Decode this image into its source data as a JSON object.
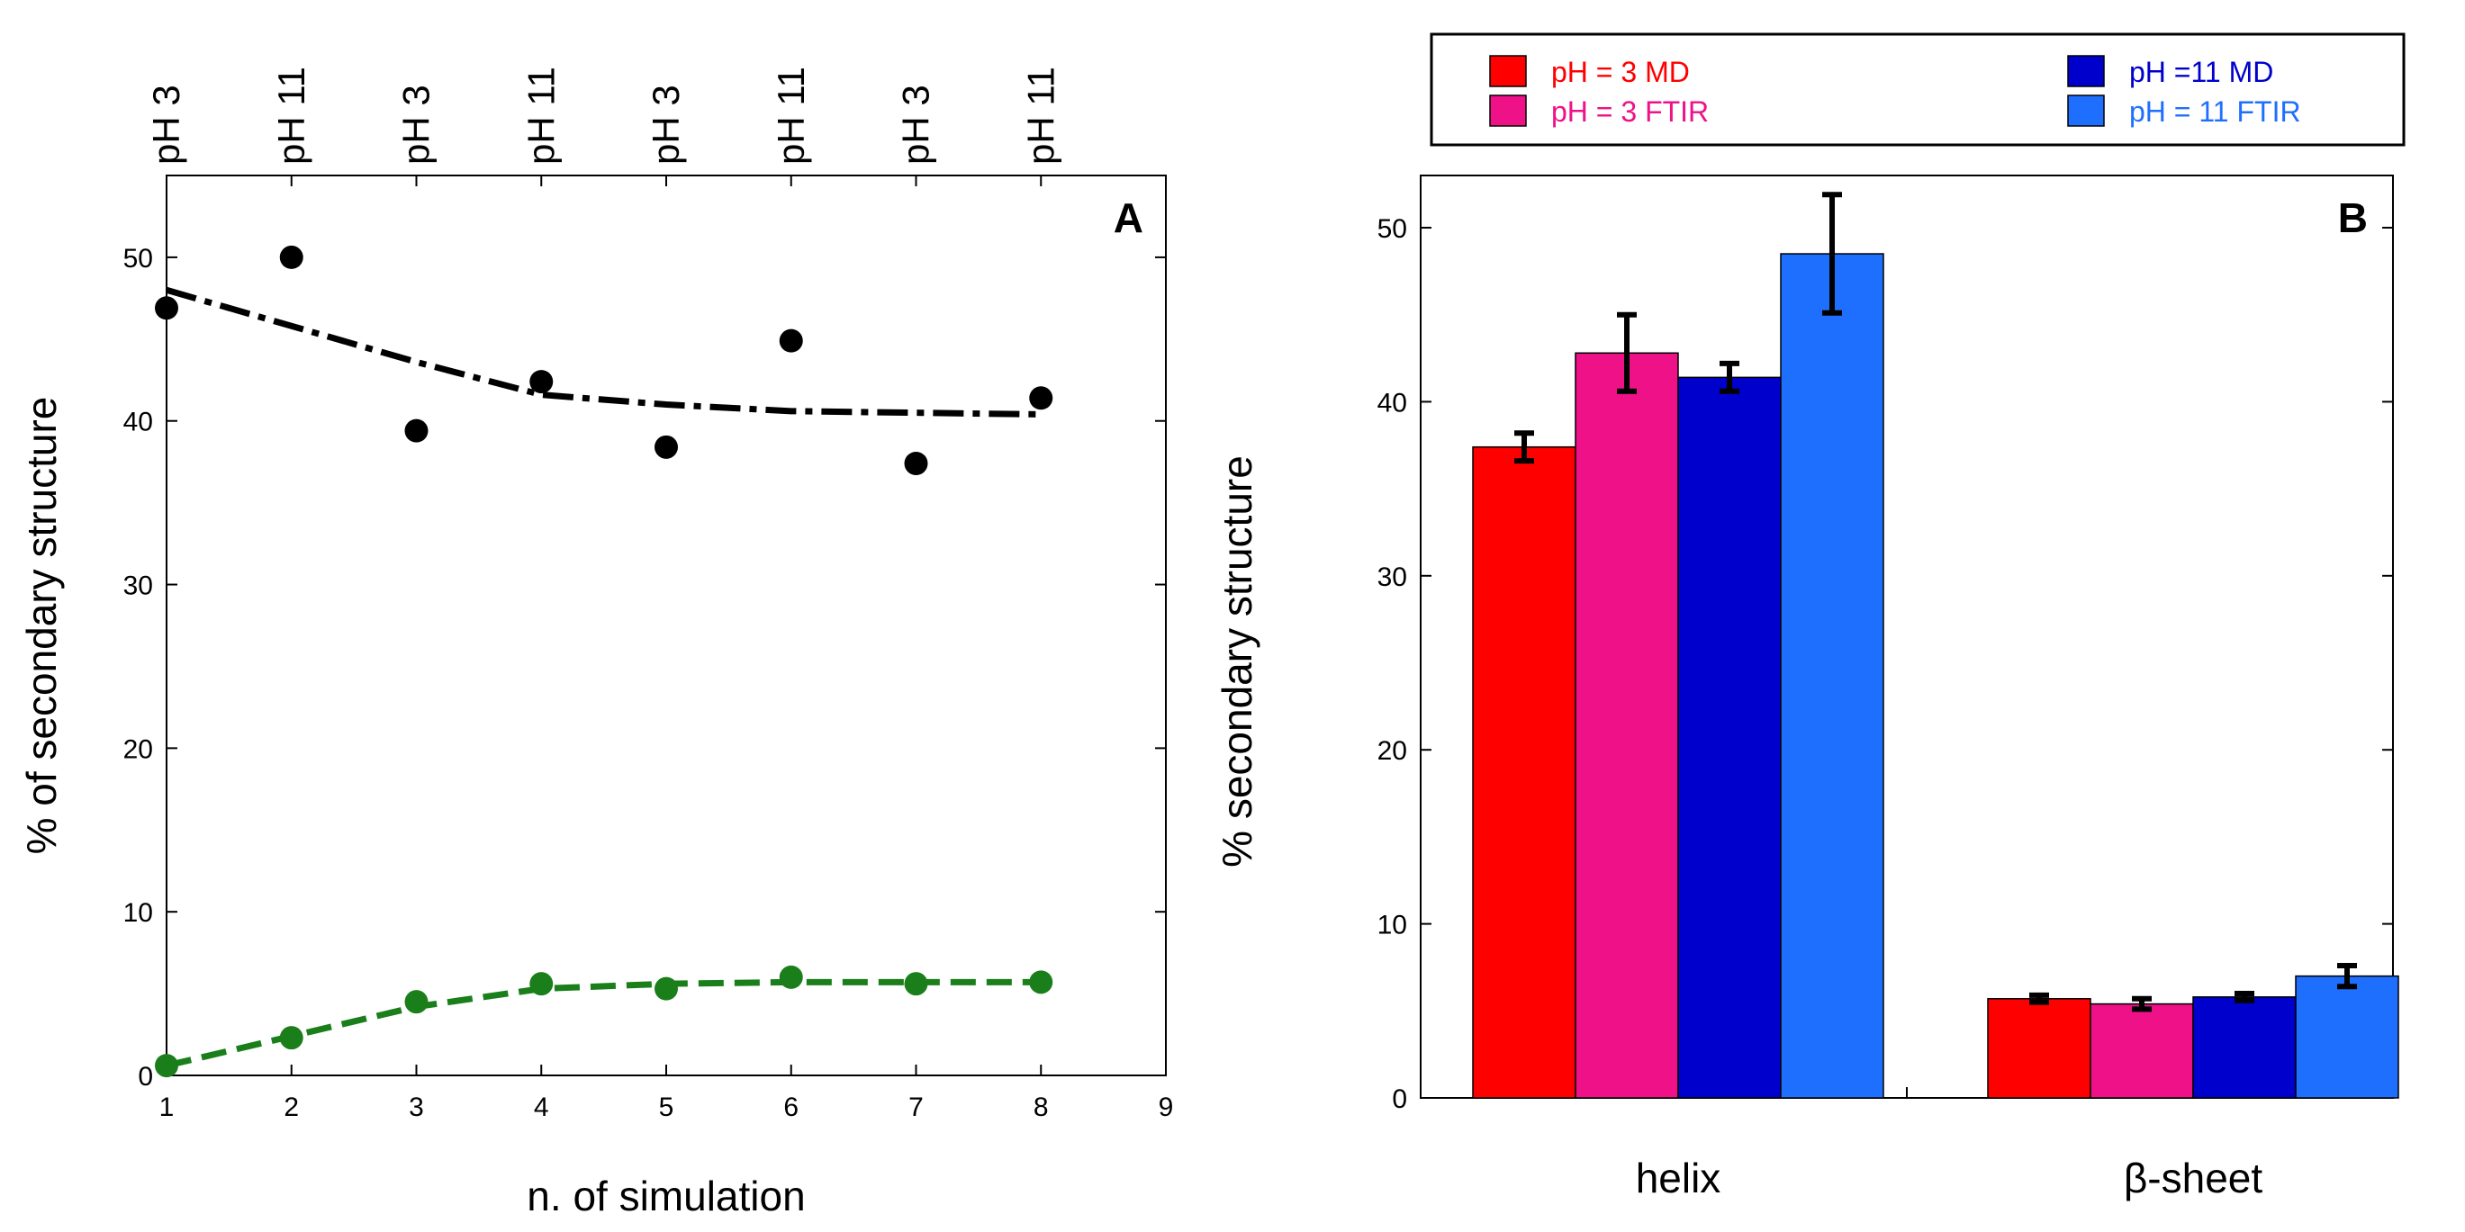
{
  "chart_data": [
    {
      "type": "scatter",
      "panel_label": "A",
      "xlabel": "n. of simulation",
      "ylabel": "% of secondary structure",
      "xlim": [
        1,
        9
      ],
      "ylim": [
        0,
        55
      ],
      "xticks": [
        1,
        2,
        3,
        4,
        5,
        6,
        7,
        8,
        9
      ],
      "yticks": [
        0,
        10,
        20,
        30,
        40,
        50
      ],
      "top_labels": [
        "pH 3",
        "pH 11",
        "pH 3",
        "pH 11",
        "pH 3",
        "pH 11",
        "pH 3",
        "pH 11"
      ],
      "grid": false,
      "series": [
        {
          "color": "#000000",
          "line_style": "dash-dot",
          "x": [
            1,
            2,
            3,
            4,
            5,
            6,
            7,
            8
          ],
          "points": [
            46.9,
            50.0,
            39.4,
            42.4,
            38.4,
            44.9,
            37.4,
            41.4
          ],
          "trend": [
            48.0,
            45.8,
            43.6,
            41.6,
            41.0,
            40.6,
            40.5,
            40.4
          ]
        },
        {
          "color": "#1a7f1a",
          "line_style": "dashed",
          "x": [
            1,
            2,
            3,
            4,
            5,
            6,
            7,
            8
          ],
          "points": [
            0.6,
            2.3,
            4.5,
            5.6,
            5.3,
            6.0,
            5.6,
            5.7
          ],
          "trend": [
            0.6,
            2.4,
            4.2,
            5.3,
            5.6,
            5.7,
            5.7,
            5.7
          ]
        }
      ]
    },
    {
      "type": "bar",
      "panel_label": "B",
      "ylabel": "% secondary structure",
      "categories": [
        "helix",
        "β-sheet"
      ],
      "ylim": [
        0,
        53
      ],
      "yticks": [
        0,
        10,
        20,
        30,
        40,
        50
      ],
      "legend_position": "top (above plot)",
      "grid": false,
      "series": [
        {
          "name": "pH = 3  MD",
          "color": "#ff0000",
          "values": [
            37.4,
            5.7
          ],
          "errors": [
            0.8,
            0.2
          ]
        },
        {
          "name": "pH = 3  FTIR",
          "color": "#ee1188",
          "values": [
            42.8,
            5.4
          ],
          "errors": [
            2.2,
            0.3
          ]
        },
        {
          "name": "pH =11  MD",
          "color": "#0000cc",
          "values": [
            41.4,
            5.8
          ],
          "errors": [
            0.8,
            0.2
          ]
        },
        {
          "name": "pH = 11  FTIR",
          "color": "#1f6fff",
          "values": [
            48.5,
            7.0
          ],
          "errors": [
            3.4,
            0.6
          ]
        }
      ]
    }
  ]
}
